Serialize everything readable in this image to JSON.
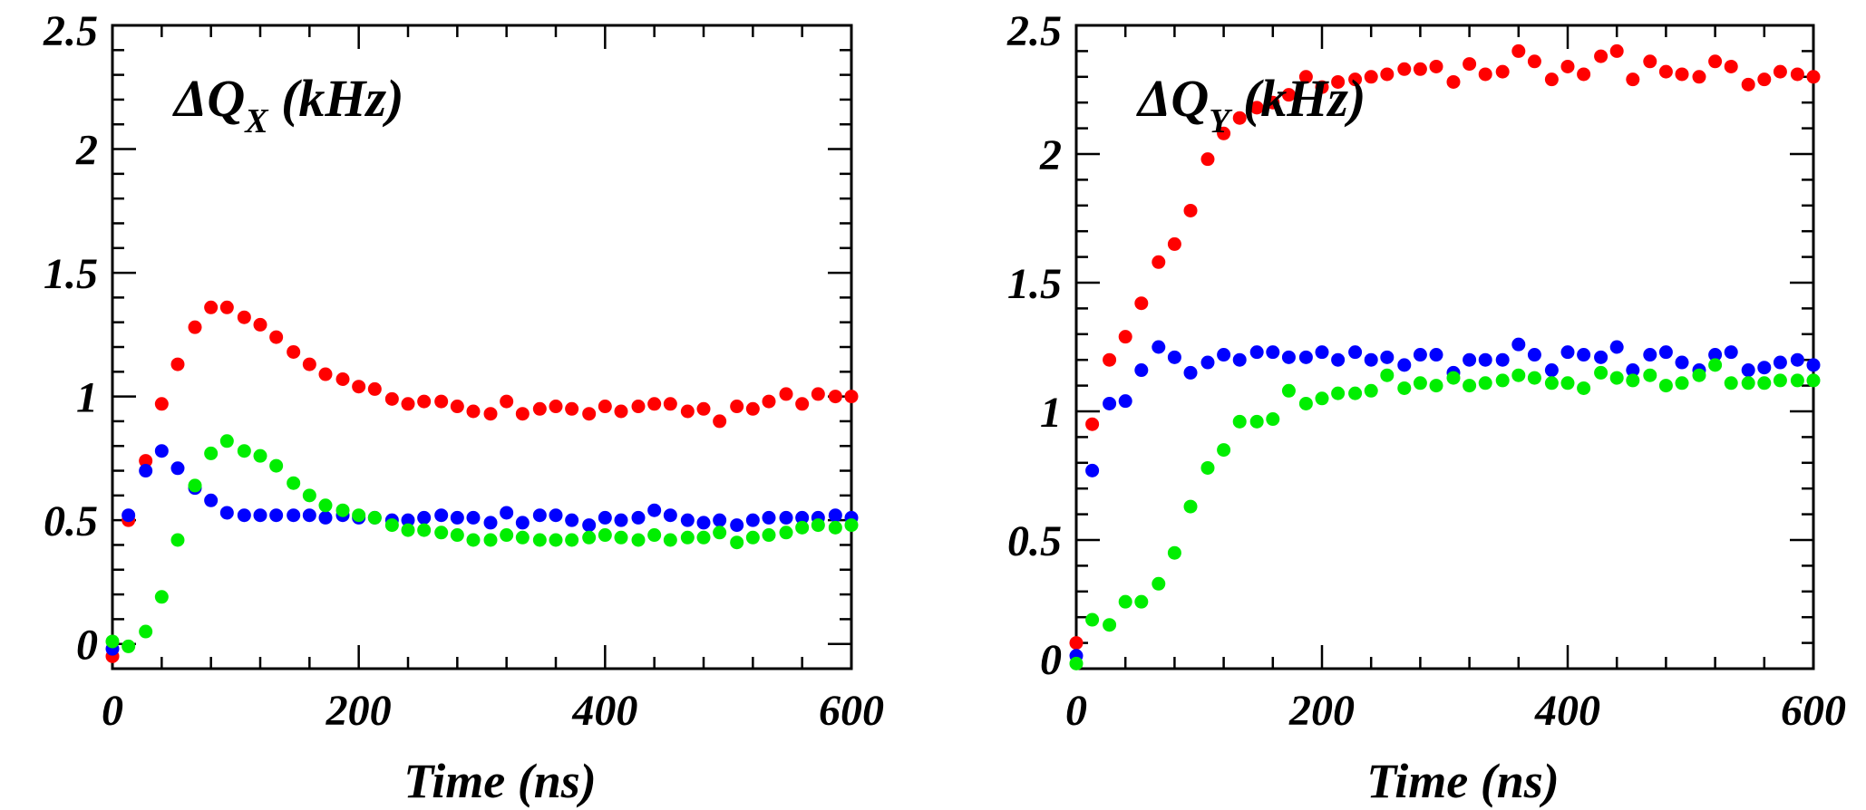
{
  "chart_data": [
    {
      "type": "scatter",
      "title": "ΔQX (kHz)",
      "title_main": "ΔQ",
      "title_sub": "X",
      "title_unit": " (kHz)",
      "xlabel": "Time (ns)",
      "ylabel": "",
      "xlim": [
        0,
        600
      ],
      "ylim": [
        -0.1,
        2.5
      ],
      "x_ticks": [
        "0",
        "200",
        "400",
        "600"
      ],
      "y_ticks": [
        "0",
        "0.5",
        "1",
        "1.5",
        "2",
        "2.5"
      ],
      "grid": false,
      "series": [
        {
          "color": "#ff0000",
          "x": [
            0,
            13,
            27,
            40,
            53,
            67,
            80,
            93,
            107,
            120,
            133,
            147,
            160,
            173,
            187,
            200,
            213,
            227,
            240,
            253,
            267,
            280,
            293,
            307,
            320,
            333,
            347,
            360,
            373,
            387,
            400,
            413,
            427,
            440,
            453,
            467,
            480,
            493,
            507,
            520,
            533,
            547,
            560,
            573,
            587,
            600
          ],
          "y": [
            -0.05,
            0.5,
            0.74,
            0.97,
            1.13,
            1.28,
            1.36,
            1.36,
            1.32,
            1.29,
            1.24,
            1.18,
            1.13,
            1.09,
            1.07,
            1.04,
            1.03,
            0.99,
            0.97,
            0.98,
            0.98,
            0.96,
            0.94,
            0.93,
            0.98,
            0.93,
            0.95,
            0.96,
            0.95,
            0.93,
            0.96,
            0.94,
            0.96,
            0.97,
            0.97,
            0.94,
            0.95,
            0.9,
            0.96,
            0.95,
            0.98,
            1.01,
            0.97,
            1.01,
            1.0,
            1.0
          ]
        },
        {
          "color": "#0000ff",
          "x": [
            0,
            13,
            27,
            40,
            53,
            67,
            80,
            93,
            107,
            120,
            133,
            147,
            160,
            173,
            187,
            200,
            213,
            227,
            240,
            253,
            267,
            280,
            293,
            307,
            320,
            333,
            347,
            360,
            373,
            387,
            400,
            413,
            427,
            440,
            453,
            467,
            480,
            493,
            507,
            520,
            533,
            547,
            560,
            573,
            587,
            600
          ],
          "y": [
            -0.02,
            0.52,
            0.7,
            0.78,
            0.71,
            0.63,
            0.58,
            0.53,
            0.52,
            0.52,
            0.52,
            0.52,
            0.52,
            0.51,
            0.52,
            0.51,
            0.51,
            0.5,
            0.5,
            0.51,
            0.52,
            0.51,
            0.51,
            0.49,
            0.53,
            0.49,
            0.52,
            0.52,
            0.5,
            0.48,
            0.51,
            0.5,
            0.51,
            0.54,
            0.52,
            0.5,
            0.49,
            0.5,
            0.48,
            0.5,
            0.51,
            0.51,
            0.51,
            0.51,
            0.52,
            0.51
          ]
        },
        {
          "color": "#00ee00",
          "x": [
            0,
            13,
            27,
            40,
            53,
            67,
            80,
            93,
            107,
            120,
            133,
            147,
            160,
            173,
            187,
            200,
            213,
            227,
            240,
            253,
            267,
            280,
            293,
            307,
            320,
            333,
            347,
            360,
            373,
            387,
            400,
            413,
            427,
            440,
            453,
            467,
            480,
            493,
            507,
            520,
            533,
            547,
            560,
            573,
            587,
            600
          ],
          "y": [
            0.01,
            -0.01,
            0.05,
            0.19,
            0.42,
            0.64,
            0.77,
            0.82,
            0.78,
            0.76,
            0.72,
            0.65,
            0.6,
            0.56,
            0.54,
            0.52,
            0.51,
            0.48,
            0.46,
            0.46,
            0.45,
            0.44,
            0.42,
            0.42,
            0.44,
            0.43,
            0.42,
            0.42,
            0.42,
            0.43,
            0.44,
            0.43,
            0.42,
            0.44,
            0.42,
            0.43,
            0.43,
            0.45,
            0.41,
            0.43,
            0.44,
            0.45,
            0.47,
            0.48,
            0.47,
            0.48
          ]
        }
      ]
    },
    {
      "type": "scatter",
      "title": "ΔQY (kHz)",
      "title_main": "ΔQ",
      "title_sub": "Y",
      "title_unit": " (kHz)",
      "xlabel": "Time (ns)",
      "ylabel": "",
      "xlim": [
        0,
        600
      ],
      "ylim": [
        0,
        2.5
      ],
      "x_ticks": [
        "0",
        "200",
        "400",
        "600"
      ],
      "y_ticks": [
        "0",
        "0.5",
        "1",
        "1.5",
        "2",
        "2.5"
      ],
      "grid": false,
      "series": [
        {
          "color": "#ff0000",
          "x": [
            0,
            13,
            27,
            40,
            53,
            67,
            80,
            93,
            107,
            120,
            133,
            147,
            160,
            173,
            187,
            200,
            213,
            227,
            240,
            253,
            267,
            280,
            293,
            307,
            320,
            333,
            347,
            360,
            373,
            387,
            400,
            413,
            427,
            440,
            453,
            467,
            480,
            493,
            507,
            520,
            533,
            547,
            560,
            573,
            587,
            600
          ],
          "y": [
            0.1,
            0.95,
            1.2,
            1.29,
            1.42,
            1.58,
            1.65,
            1.78,
            1.98,
            2.08,
            2.14,
            2.18,
            2.2,
            2.23,
            2.3,
            2.26,
            2.28,
            2.29,
            2.3,
            2.31,
            2.33,
            2.33,
            2.34,
            2.28,
            2.35,
            2.31,
            2.32,
            2.4,
            2.36,
            2.29,
            2.34,
            2.31,
            2.38,
            2.4,
            2.29,
            2.36,
            2.32,
            2.31,
            2.3,
            2.36,
            2.34,
            2.27,
            2.29,
            2.32,
            2.31,
            2.3
          ]
        },
        {
          "color": "#0000ff",
          "x": [
            0,
            13,
            27,
            40,
            53,
            67,
            80,
            93,
            107,
            120,
            133,
            147,
            160,
            173,
            187,
            200,
            213,
            227,
            240,
            253,
            267,
            280,
            293,
            307,
            320,
            333,
            347,
            360,
            373,
            387,
            400,
            413,
            427,
            440,
            453,
            467,
            480,
            493,
            507,
            520,
            533,
            547,
            560,
            573,
            587,
            600
          ],
          "y": [
            0.05,
            0.77,
            1.03,
            1.04,
            1.16,
            1.25,
            1.21,
            1.15,
            1.19,
            1.22,
            1.2,
            1.23,
            1.23,
            1.21,
            1.21,
            1.23,
            1.2,
            1.23,
            1.2,
            1.21,
            1.18,
            1.22,
            1.22,
            1.15,
            1.2,
            1.2,
            1.2,
            1.26,
            1.22,
            1.16,
            1.23,
            1.22,
            1.21,
            1.25,
            1.16,
            1.22,
            1.23,
            1.19,
            1.16,
            1.22,
            1.23,
            1.16,
            1.17,
            1.19,
            1.2,
            1.18
          ]
        },
        {
          "color": "#00ee00",
          "x": [
            0,
            13,
            27,
            40,
            53,
            67,
            80,
            93,
            107,
            120,
            133,
            147,
            160,
            173,
            187,
            200,
            213,
            227,
            240,
            253,
            267,
            280,
            293,
            307,
            320,
            333,
            347,
            360,
            373,
            387,
            400,
            413,
            427,
            440,
            453,
            467,
            480,
            493,
            507,
            520,
            533,
            547,
            560,
            573,
            587,
            600
          ],
          "y": [
            0.02,
            0.19,
            0.17,
            0.26,
            0.26,
            0.33,
            0.45,
            0.63,
            0.78,
            0.85,
            0.96,
            0.96,
            0.97,
            1.08,
            1.03,
            1.05,
            1.07,
            1.07,
            1.08,
            1.14,
            1.09,
            1.11,
            1.1,
            1.13,
            1.1,
            1.11,
            1.12,
            1.14,
            1.13,
            1.11,
            1.11,
            1.09,
            1.15,
            1.13,
            1.12,
            1.14,
            1.1,
            1.11,
            1.14,
            1.18,
            1.11,
            1.11,
            1.11,
            1.12,
            1.12,
            1.12
          ]
        }
      ]
    }
  ]
}
